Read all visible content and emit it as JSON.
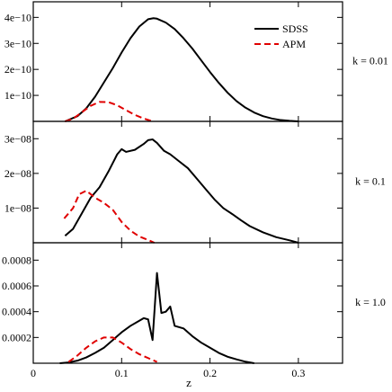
{
  "chart_data": {
    "type": "line",
    "xlabel": "z",
    "xlim": [
      0,
      0.35
    ],
    "x_ticks": [
      0,
      0.1,
      0.2,
      0.3
    ],
    "x_tick_labels": [
      "0",
      "0.1",
      "0.2",
      "0.3"
    ],
    "legend": {
      "placement": "top-right of top panel",
      "entries": [
        {
          "name": "SDSS",
          "color": "#000000",
          "style": "solid"
        },
        {
          "name": "APM",
          "color": "#e00000",
          "style": "dashed"
        }
      ]
    },
    "panels": [
      {
        "label": "k = 0.01",
        "ylim": [
          0,
          4.6e-10
        ],
        "y_ticks": [
          1e-10,
          2e-10,
          3e-10,
          4e-10
        ],
        "y_tick_labels": [
          "1e−10",
          "2e−10",
          "3e−10",
          "4e−10"
        ],
        "series": [
          {
            "name": "SDSS",
            "x": [
              0.036,
              0.05,
              0.06,
              0.07,
              0.08,
              0.09,
              0.1,
              0.11,
              0.12,
              0.13,
              0.136,
              0.14,
              0.15,
              0.16,
              0.17,
              0.18,
              0.19,
              0.2,
              0.21,
              0.22,
              0.23,
              0.24,
              0.25,
              0.26,
              0.27,
              0.28,
              0.29,
              0.3
            ],
            "y": [
              0,
              2e-11,
              5e-11,
              9.5e-11,
              1.5e-10,
              2.05e-10,
              2.65e-10,
              3.2e-10,
              3.65e-10,
              3.93e-10,
              3.97e-10,
              3.95e-10,
              3.8e-10,
              3.55e-10,
              3.2e-10,
              2.8e-10,
              2.35e-10,
              1.9e-10,
              1.48e-10,
              1.1e-10,
              7.8e-11,
              5.3e-11,
              3.4e-11,
              2e-11,
              1.1e-11,
              5e-12,
              2e-12,
              0
            ]
          },
          {
            "name": "APM",
            "x": [
              0.036,
              0.045,
              0.055,
              0.065,
              0.075,
              0.085,
              0.095,
              0.105,
              0.115,
              0.125,
              0.135
            ],
            "y": [
              0,
              1e-11,
              3.5e-11,
              6e-11,
              7.5e-11,
              7.4e-11,
              6.2e-11,
              4.3e-11,
              2.5e-11,
              1.1e-11,
              0
            ]
          }
        ]
      },
      {
        "label": "k = 0.1",
        "ylim": [
          0,
          3.5e-08
        ],
        "y_ticks": [
          1e-08,
          2e-08,
          3e-08
        ],
        "y_tick_labels": [
          "1e−08",
          "2e−08",
          "3e−08"
        ],
        "series": [
          {
            "name": "SDSS",
            "x": [
              0.036,
              0.045,
              0.055,
              0.065,
              0.075,
              0.085,
              0.095,
              0.1,
              0.105,
              0.115,
              0.125,
              0.13,
              0.135,
              0.14,
              0.148,
              0.155,
              0.165,
              0.175,
              0.185,
              0.195,
              0.205,
              0.215,
              0.225,
              0.235,
              0.245,
              0.26,
              0.275,
              0.29,
              0.3
            ],
            "y": [
              2e-09,
              4e-09,
              8.5e-09,
              1.3e-08,
              1.6e-08,
              2.05e-08,
              2.55e-08,
              2.7e-08,
              2.62e-08,
              2.68e-08,
              2.85e-08,
              2.96e-08,
              2.98e-08,
              2.88e-08,
              2.65e-08,
              2.55e-08,
              2.35e-08,
              2.15e-08,
              1.85e-08,
              1.55e-08,
              1.25e-08,
              1e-08,
              8.3e-09,
              6.5e-09,
              4.8e-09,
              3e-09,
              1.6e-09,
              7e-10,
              0
            ]
          },
          {
            "name": "APM",
            "x": [
              0.035,
              0.045,
              0.052,
              0.06,
              0.07,
              0.08,
              0.09,
              0.1,
              0.11,
              0.12,
              0.13,
              0.137
            ],
            "y": [
              7e-09,
              1e-08,
              1.4e-08,
              1.5e-08,
              1.3e-08,
              1.15e-08,
              9.5e-09,
              6e-09,
              3.5e-09,
              1.8e-09,
              8e-10,
              0
            ]
          }
        ]
      },
      {
        "label": "k = 1.0",
        "ylim": [
          0,
          0.000935
        ],
        "y_ticks": [
          0.0002,
          0.0004,
          0.0006,
          0.0008
        ],
        "y_tick_labels": [
          "0.0002",
          "0.0004",
          "0.0006",
          "0.0008"
        ],
        "series": [
          {
            "name": "SDSS",
            "x": [
              0.03,
              0.04,
              0.05,
              0.06,
              0.07,
              0.08,
              0.09,
              0.1,
              0.11,
              0.12,
              0.125,
              0.13,
              0.135,
              0.14,
              0.145,
              0.15,
              0.155,
              0.16,
              0.17,
              0.18,
              0.19,
              0.2,
              0.21,
              0.22,
              0.23,
              0.24,
              0.25
            ],
            "y": [
              2e-07,
              6e-06,
              2e-05,
              4.5e-05,
              8e-05,
              0.00012,
              0.00018,
              0.00024,
              0.00029,
              0.00033,
              0.00035,
              0.00034,
              0.00018,
              0.0007,
              0.00039,
              0.0004,
              0.00044,
              0.00029,
              0.00027,
              0.00021,
              0.00016,
              0.00012,
              8e-05,
              5e-05,
              3e-05,
              1.2e-05,
              0
            ]
          },
          {
            "name": "APM",
            "x": [
              0.04,
              0.05,
              0.06,
              0.07,
              0.08,
              0.09,
              0.1,
              0.11,
              0.12,
              0.13,
              0.14
            ],
            "y": [
              1e-05,
              6e-05,
              0.00012,
              0.00017,
              0.0002,
              0.0002,
              0.00016,
              0.00011,
              7e-05,
              4e-05,
              1e-05
            ]
          }
        ]
      }
    ]
  }
}
